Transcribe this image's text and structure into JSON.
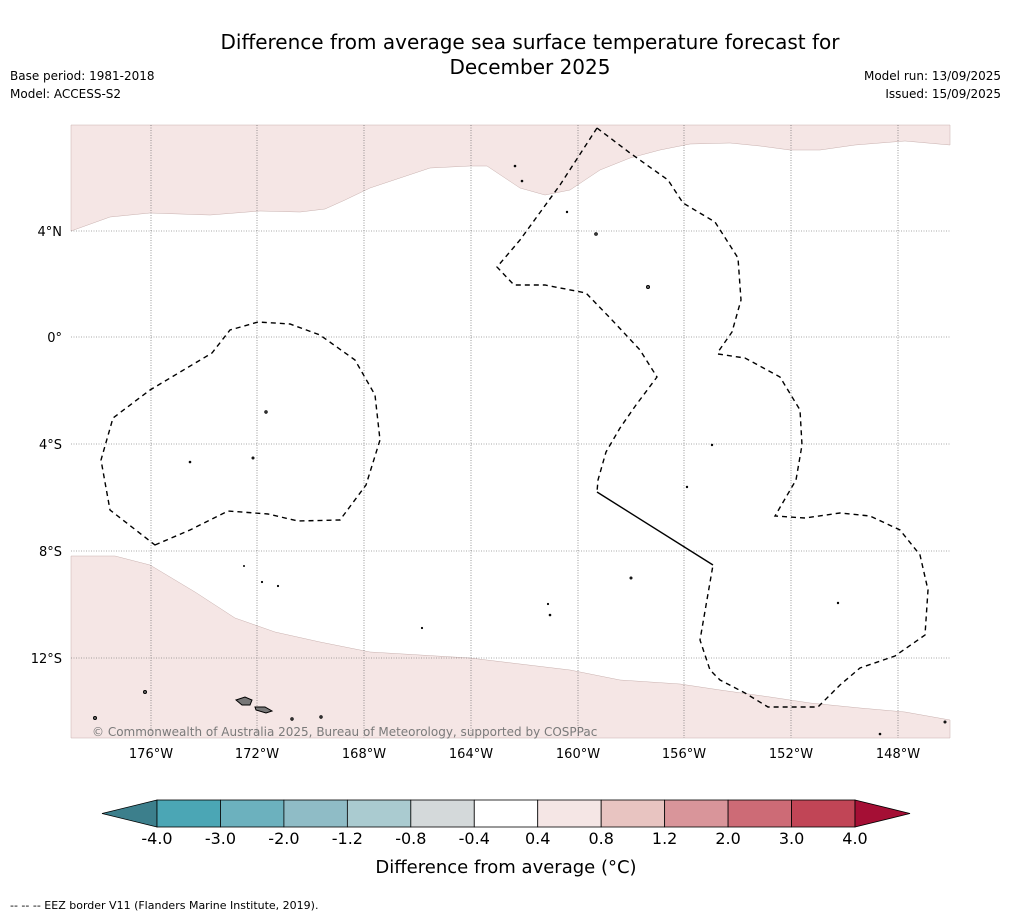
{
  "title_line1": "Difference from average sea surface temperature forecast for",
  "title_line2": "December 2025",
  "base_period": "Base period: 1981-2018",
  "model": "Model: ACCESS-S2",
  "model_run": "Model run: 13/09/2025",
  "issued": "Issued: 15/09/2025",
  "copyright": "© Commonwealth of Australia 2025, Bureau of Meteorology, supported by COSPPac",
  "lat_labels": [
    "4°N",
    "0°",
    "4°S",
    "8°S",
    "12°S"
  ],
  "lon_labels": [
    "176°W",
    "172°W",
    "168°W",
    "164°W",
    "160°W",
    "156°W",
    "152°W",
    "148°W"
  ],
  "colorbar": {
    "ticks": [
      "-4.0",
      "-3.0",
      "-2.0",
      "-1.2",
      "-0.8",
      "-0.4",
      "0.4",
      "0.8",
      "1.2",
      "2.0",
      "3.0",
      "4.0"
    ],
    "colors": [
      "#3c7f8c",
      "#4ba6b5",
      "#6cb1be",
      "#8fbcc6",
      "#aacbd0",
      "#d4d9da",
      "#ffffff",
      "#f5e6e5",
      "#e8c4c1",
      "#d9959a",
      "#cd6b76",
      "#c14556",
      "#a50f35"
    ],
    "label": "Difference from average (°C)"
  },
  "anomaly_color": "#f5e6e5",
  "footer": "--  --  -- EEZ border V11 (Flanders Marine Institute, 2019)."
}
